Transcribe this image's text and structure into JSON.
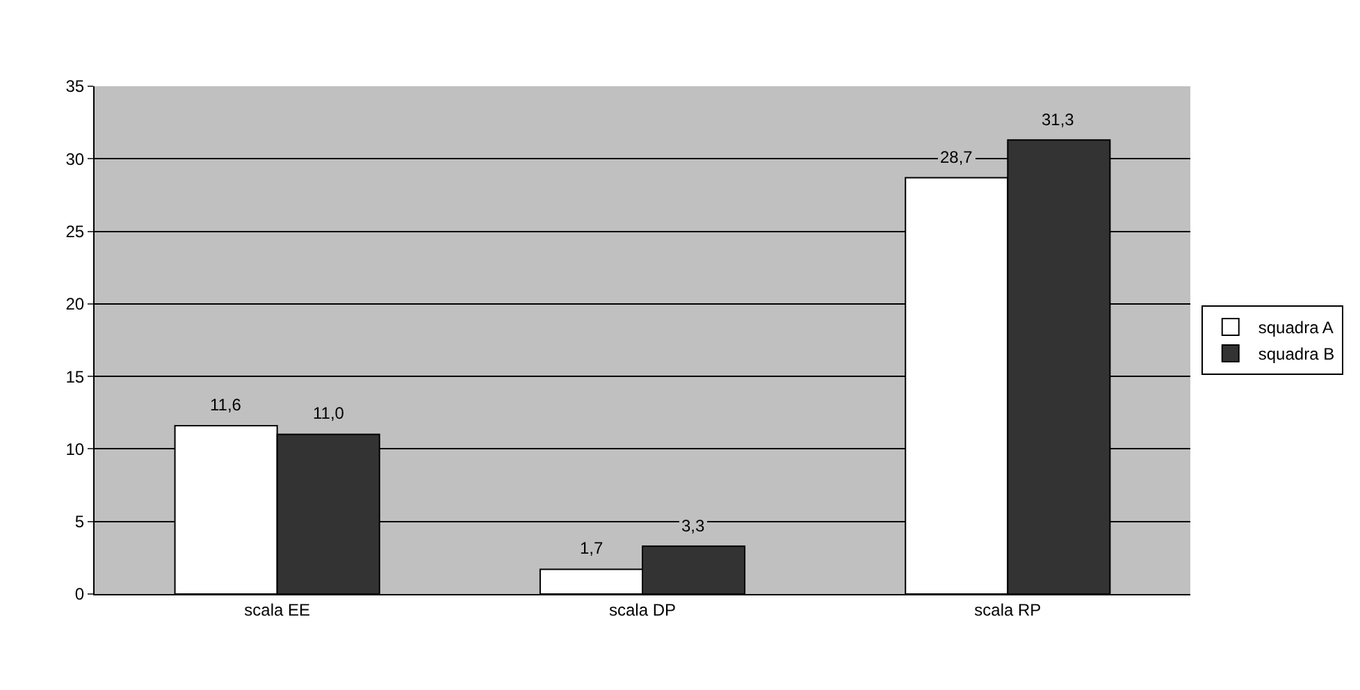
{
  "chart_data": {
    "type": "bar",
    "categories": [
      "scala EE",
      "scala DP",
      "scala RP"
    ],
    "series": [
      {
        "name": "squadra A",
        "color": "#ffffff",
        "values": [
          11.6,
          1.7,
          28.7
        ],
        "value_labels": [
          "11,6",
          "1,7",
          "28,7"
        ]
      },
      {
        "name": "squadra B",
        "color": "#333333",
        "values": [
          11.0,
          3.3,
          31.3
        ],
        "value_labels": [
          "11,0",
          "3,3",
          "31,3"
        ]
      }
    ],
    "ylim": [
      0,
      35
    ],
    "yticks": [
      0,
      5,
      10,
      15,
      20,
      25,
      30,
      35
    ],
    "grid": "y",
    "legend": "right"
  }
}
